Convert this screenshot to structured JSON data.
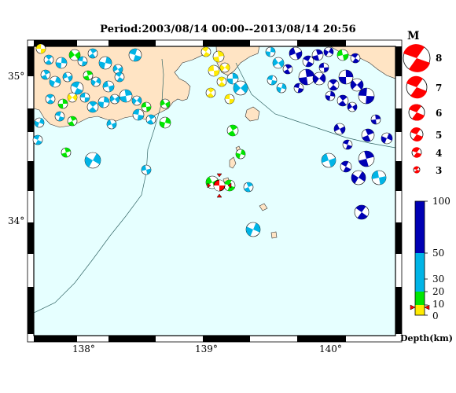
{
  "title": "Period:2003/08/14 00:00--2013/08/14 20:56",
  "map": {
    "lon_labels": [
      "138°",
      "139°",
      "140°"
    ],
    "lat_labels": [
      "35°",
      "34°"
    ],
    "colors": {
      "sea": "#e6ffff",
      "land": "#ffe4c4",
      "coast": "#333333",
      "depth_shallow": "#ffeb00",
      "depth_mid_low": "#00e600",
      "depth_mid": "#00b4e6",
      "depth_deep": "#0000b4",
      "main_event": "#ff0000"
    },
    "main_event_depth_km": 7
  },
  "magnitude_legend": {
    "heading": "M",
    "items": [
      "8",
      "7",
      "6",
      "5",
      "4",
      "3"
    ]
  },
  "depth_legend": {
    "ticks": [
      "100",
      "50",
      "30",
      "20",
      "10",
      "0"
    ],
    "unit": "Depth(km)",
    "marker_depth_km": 7
  }
}
